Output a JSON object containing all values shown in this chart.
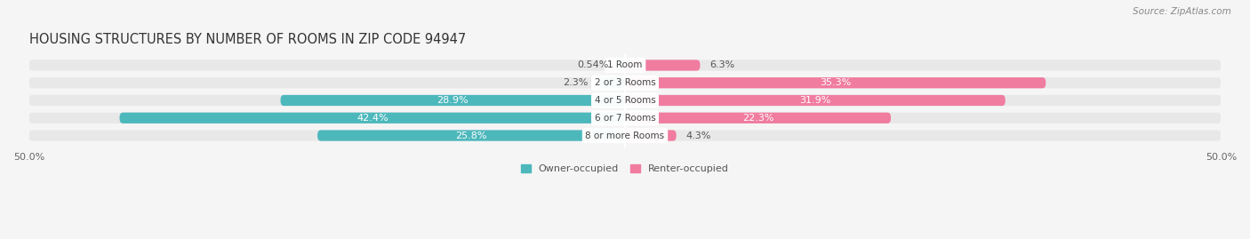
{
  "title": "HOUSING STRUCTURES BY NUMBER OF ROOMS IN ZIP CODE 94947",
  "source": "Source: ZipAtlas.com",
  "categories": [
    "1 Room",
    "2 or 3 Rooms",
    "4 or 5 Rooms",
    "6 or 7 Rooms",
    "8 or more Rooms"
  ],
  "owner_values": [
    0.54,
    2.3,
    28.9,
    42.4,
    25.8
  ],
  "renter_values": [
    6.3,
    35.3,
    31.9,
    22.3,
    4.3
  ],
  "owner_color": "#4db8bc",
  "renter_color": "#f07ca0",
  "owner_light_color": "#a8dfe0",
  "renter_light_color": "#f9c0d4",
  "owner_label": "Owner-occupied",
  "renter_label": "Renter-occupied",
  "xlim_val": 50,
  "bar_height": 0.62,
  "background_color": "#f5f5f5",
  "bar_bg_color": "#e8e8e8",
  "title_fontsize": 10.5,
  "source_fontsize": 7.5,
  "label_fontsize": 8,
  "category_fontsize": 7.5,
  "axis_label_fontsize": 8,
  "legend_fontsize": 8
}
